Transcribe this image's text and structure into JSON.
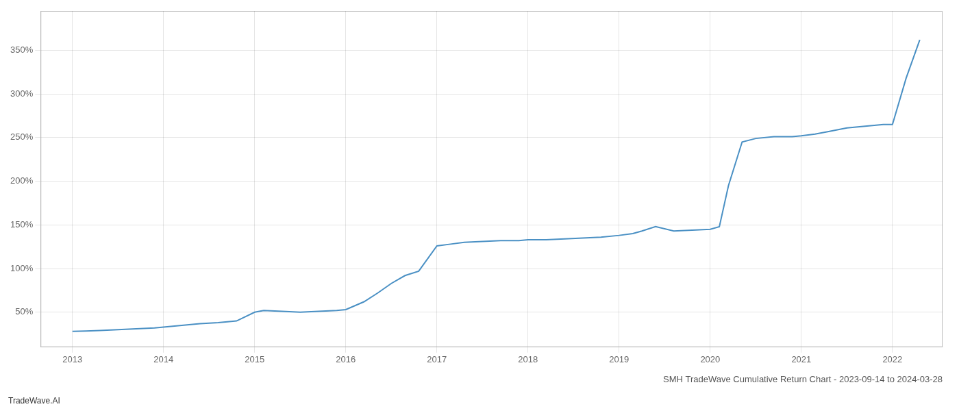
{
  "chart_data": {
    "type": "line",
    "title": "SMH TradeWave Cumulative Return Chart - 2023-09-14 to 2024-03-28",
    "annotations": [
      "TradeWave.AI"
    ],
    "x": [
      2013.0,
      2013.15,
      2013.3,
      2013.5,
      2013.7,
      2013.9,
      2014.0,
      2014.2,
      2014.4,
      2014.6,
      2014.8,
      2015.0,
      2015.1,
      2015.3,
      2015.5,
      2015.7,
      2015.9,
      2016.0,
      2016.2,
      2016.35,
      2016.5,
      2016.65,
      2016.8,
      2017.0,
      2017.15,
      2017.3,
      2017.5,
      2017.7,
      2017.9,
      2018.0,
      2018.2,
      2018.4,
      2018.6,
      2018.8,
      2019.0,
      2019.15,
      2019.25,
      2019.4,
      2019.6,
      2019.8,
      2020.0,
      2020.1,
      2020.2,
      2020.35,
      2020.5,
      2020.7,
      2020.9,
      2021.0,
      2021.15,
      2021.3,
      2021.5,
      2021.7,
      2021.9,
      2022.0,
      2022.15,
      2022.3
    ],
    "values": [
      28,
      28.5,
      29,
      30,
      31,
      32,
      33,
      35,
      37,
      38,
      40,
      50,
      52,
      51,
      50,
      51,
      52,
      53,
      62,
      72,
      83,
      92,
      97,
      126,
      128,
      130,
      131,
      132,
      132,
      133,
      133,
      134,
      135,
      136,
      138,
      140,
      143,
      148,
      143,
      144,
      145,
      148,
      195,
      245,
      249,
      251,
      251,
      252,
      254,
      257,
      261,
      263,
      265,
      265,
      318,
      362
    ],
    "color": "#4a90c4",
    "xlim": [
      2012.65,
      2022.55
    ],
    "ylim": [
      10,
      395
    ],
    "xticks": [
      2013,
      2014,
      2015,
      2016,
      2017,
      2018,
      2019,
      2020,
      2021,
      2022
    ],
    "yticks": [
      {
        "value": 50,
        "label": "50%"
      },
      {
        "value": 100,
        "label": "100%"
      },
      {
        "value": 150,
        "label": "150%"
      },
      {
        "value": 200,
        "label": "200%"
      },
      {
        "value": 250,
        "label": "250%"
      },
      {
        "value": 300,
        "label": "300%"
      },
      {
        "value": 350,
        "label": "350%"
      }
    ],
    "grid": true
  }
}
